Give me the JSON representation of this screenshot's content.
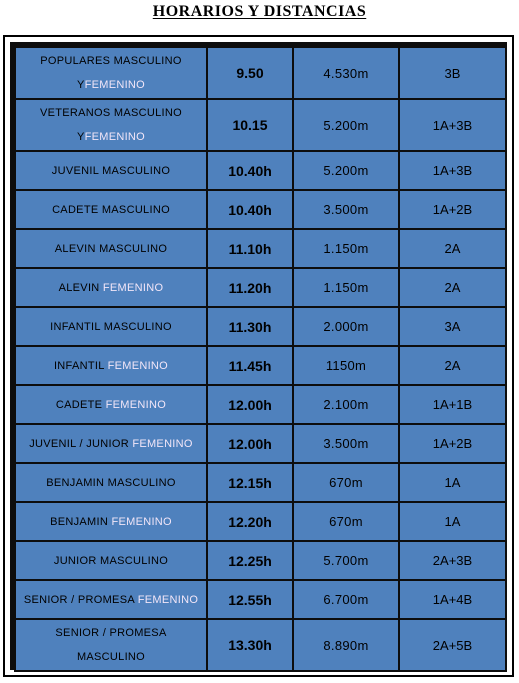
{
  "title": "HORARIOS Y DISTANCIAS",
  "rows": [
    {
      "cat_a": "POPULARES MASCULINO Y",
      "cat_f": "FEMENINO",
      "time": "9.50",
      "dist": "4.530m",
      "laps": "3B"
    },
    {
      "cat_a": "VETERANOS MASCULINO Y",
      "cat_f": "FEMENINO",
      "time": "10.15",
      "dist": "5.200m",
      "laps": "1A+3B"
    },
    {
      "cat_a": "JUVENIL MASCULINO",
      "cat_f": "",
      "time": "10.40h",
      "dist": "5.200m",
      "laps": "1A+3B"
    },
    {
      "cat_a": "CADETE MASCULINO",
      "cat_f": "",
      "time": "10.40h",
      "dist": "3.500m",
      "laps": "1A+2B"
    },
    {
      "cat_a": "ALEVIN MASCULINO",
      "cat_f": "",
      "time": "11.10h",
      "dist": "1.150m",
      "laps": "2A"
    },
    {
      "cat_a": "ALEVIN ",
      "cat_f": "FEMENINO",
      "time": "11.20h",
      "dist": "1.150m",
      "laps": "2A"
    },
    {
      "cat_a": "INFANTIL MASCULINO",
      "cat_f": "",
      "time": "11.30h",
      "dist": "2.000m",
      "laps": "3A"
    },
    {
      "cat_a": "INFANTIL ",
      "cat_f": "FEMENINO",
      "time": "11.45h",
      "dist": "1150m",
      "laps": "2A"
    },
    {
      "cat_a": "CADETE ",
      "cat_f": "FEMENINO",
      "time": "12.00h",
      "dist": "2.100m",
      "laps": "1A+1B"
    },
    {
      "cat_a": "JUVENIL / JUNIOR ",
      "cat_f": "FEMENINO",
      "time": "12.00h",
      "dist": "3.500m",
      "laps": "1A+2B"
    },
    {
      "cat_a": "BENJAMIN MASCULINO",
      "cat_f": "",
      "time": "12.15h",
      "dist": "670m",
      "laps": "1A"
    },
    {
      "cat_a": "BENJAMIN ",
      "cat_f": "FEMENINO",
      "time": "12.20h",
      "dist": "670m",
      "laps": "1A"
    },
    {
      "cat_a": "JUNIOR MASCULINO",
      "cat_f": "",
      "time": "12.25h",
      "dist": "5.700m",
      "laps": "2A+3B"
    },
    {
      "cat_a": "SENIOR / PROMESA ",
      "cat_f": "FEMENINO",
      "time": "12.55h",
      "dist": "6.700m",
      "laps": "1A+4B"
    },
    {
      "cat_a": "SENIOR / PROMESA MASCULINO",
      "cat_f": "",
      "time": "13.30h",
      "dist": "8.890m",
      "laps": "2A+5B"
    }
  ]
}
